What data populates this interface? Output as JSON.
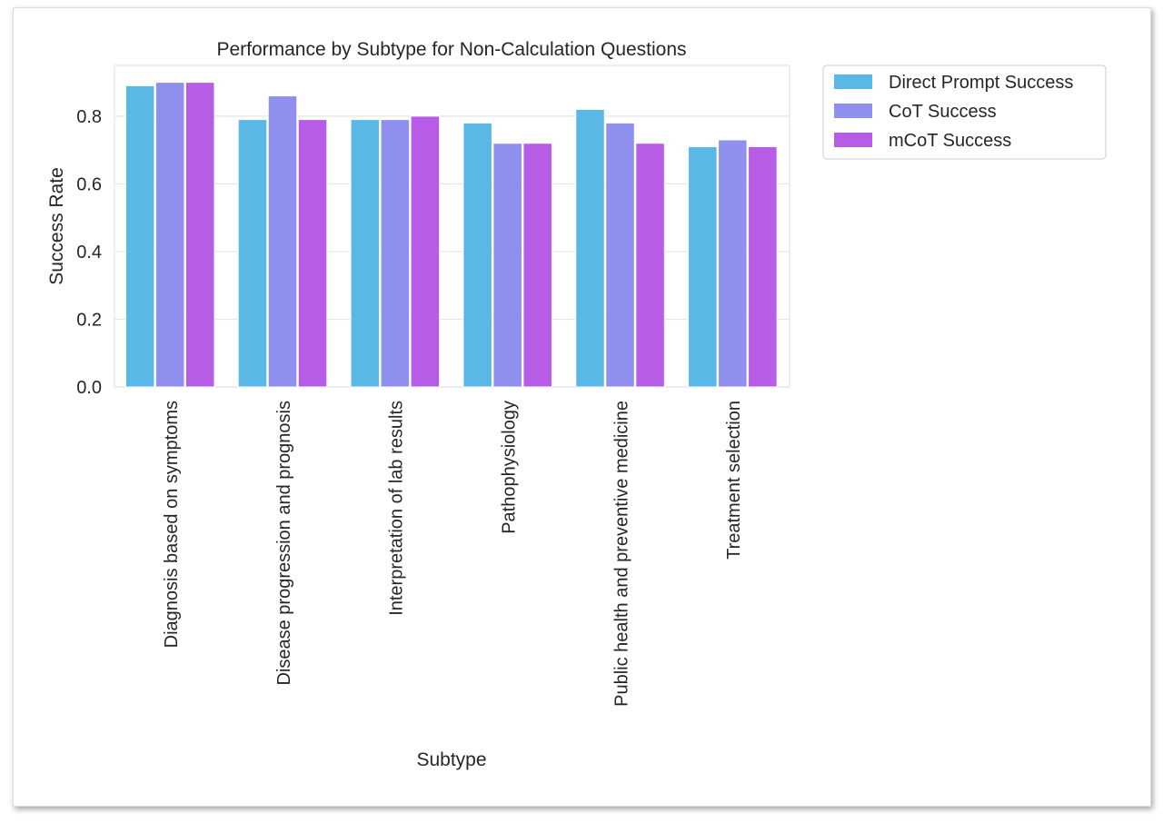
{
  "chart_data": {
    "type": "bar",
    "title": "Performance by Subtype for Non-Calculation Questions",
    "xlabel": "Subtype",
    "ylabel": "Success Rate",
    "ylim": [
      0,
      0.95
    ],
    "yticks": [
      0.0,
      0.2,
      0.4,
      0.6,
      0.8
    ],
    "ytick_labels": [
      "0.0",
      "0.2",
      "0.4",
      "0.6",
      "0.8"
    ],
    "grid": true,
    "legend_position": "outside top-right",
    "categories": [
      "Diagnosis based on symptoms",
      "Disease progression and prognosis",
      "Interpretation of lab results",
      "Pathophysiology",
      "Public health and preventive medicine",
      "Treatment selection"
    ],
    "series": [
      {
        "name": "Direct Prompt Success",
        "color": "#5ab8e6",
        "values": [
          0.89,
          0.79,
          0.79,
          0.78,
          0.82,
          0.71
        ]
      },
      {
        "name": "CoT Success",
        "color": "#8f90ee",
        "values": [
          0.9,
          0.86,
          0.79,
          0.72,
          0.78,
          0.73
        ]
      },
      {
        "name": "mCoT Success",
        "color": "#b65ce6",
        "values": [
          0.9,
          0.79,
          0.8,
          0.72,
          0.72,
          0.71
        ]
      }
    ]
  }
}
